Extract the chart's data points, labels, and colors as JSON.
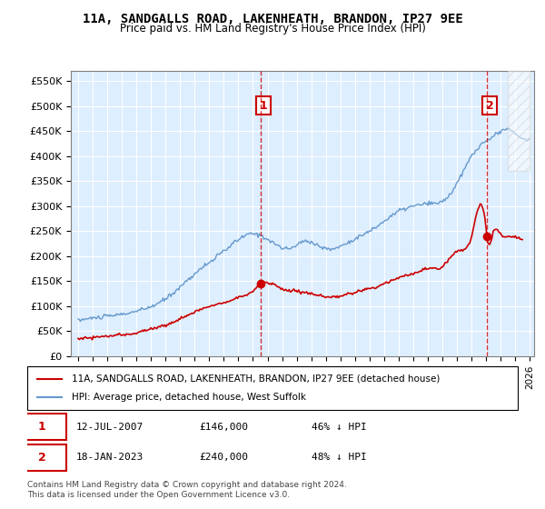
{
  "title": "11A, SANDGALLS ROAD, LAKENHEATH, BRANDON, IP27 9EE",
  "subtitle": "Price paid vs. HM Land Registry's House Price Index (HPI)",
  "red_label": "11A, SANDGALLS ROAD, LAKENHEATH, BRANDON, IP27 9EE (detached house)",
  "blue_label": "HPI: Average price, detached house, West Suffolk",
  "annotation1_label": "1",
  "annotation1_date": "12-JUL-2007",
  "annotation1_price": "£146,000",
  "annotation1_pct": "46% ↓ HPI",
  "annotation2_label": "2",
  "annotation2_date": "18-JAN-2023",
  "annotation2_price": "£240,000",
  "annotation2_pct": "48% ↓ HPI",
  "footer": "Contains HM Land Registry data © Crown copyright and database right 2024.\nThis data is licensed under the Open Government Licence v3.0.",
  "red_color": "#cc0000",
  "blue_color": "#6699cc",
  "annotation_color": "#cc0000",
  "bg_color": "#ddeeff",
  "plot_bg": "#ddeeff",
  "ylim": [
    0,
    570000
  ],
  "yticks": [
    0,
    50000,
    100000,
    150000,
    200000,
    250000,
    300000,
    350000,
    400000,
    450000,
    500000,
    550000
  ],
  "x_start_year": 1995,
  "x_end_year": 2026,
  "sale1_year": 2007.53,
  "sale1_value": 146000,
  "sale2_year": 2023.05,
  "sale2_value": 240000
}
